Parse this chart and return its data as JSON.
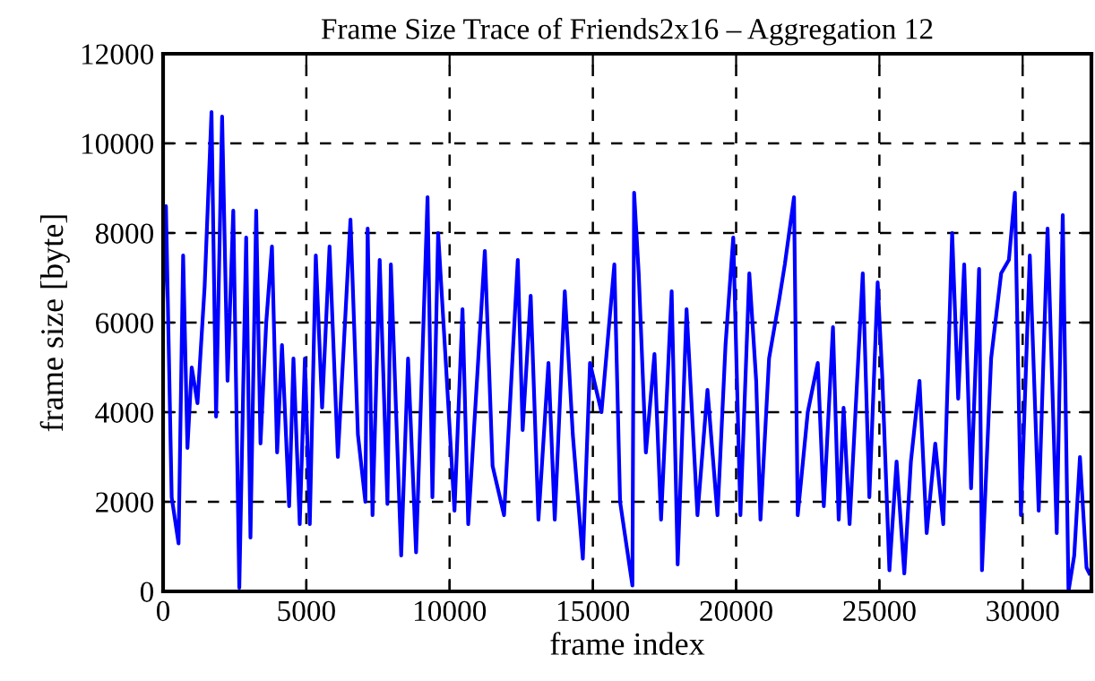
{
  "chart_data": {
    "type": "line",
    "title": "Frame Size Trace of Friends2x16 – Aggregation 12",
    "xlabel": "frame index",
    "ylabel": "frame size [byte]",
    "x": [
      0,
      100,
      300,
      540,
      700,
      850,
      1000,
      1200,
      1450,
      1690,
      1850,
      2060,
      2250,
      2450,
      2660,
      2900,
      3050,
      3250,
      3400,
      3600,
      3800,
      3980,
      4150,
      4400,
      4550,
      4770,
      4950,
      5120,
      5330,
      5550,
      5810,
      6100,
      6540,
      6800,
      7060,
      7140,
      7310,
      7560,
      7830,
      7950,
      8310,
      8550,
      8830,
      9230,
      9400,
      9600,
      9850,
      10170,
      10450,
      10650,
      11230,
      11500,
      11900,
      12380,
      12550,
      12830,
      13100,
      13450,
      13670,
      14020,
      14300,
      14650,
      14900,
      15300,
      15750,
      15950,
      16380,
      16440,
      16600,
      16850,
      17150,
      17380,
      17750,
      17960,
      18270,
      18650,
      19000,
      19350,
      19630,
      19900,
      20150,
      20460,
      20700,
      20850,
      21150,
      21500,
      21700,
      22020,
      22150,
      22500,
      22850,
      23060,
      23380,
      23580,
      23750,
      23960,
      24420,
      24650,
      24940,
      25100,
      25350,
      25600,
      25870,
      26100,
      26400,
      26650,
      26950,
      27230,
      27540,
      27750,
      27960,
      28200,
      28480,
      28580,
      28900,
      29250,
      29520,
      29730,
      29940,
      30250,
      30560,
      30870,
      31190,
      31400,
      31600,
      31800,
      32000,
      32230,
      32330
    ],
    "series": [
      {
        "color": "#0000ff",
        "values": [
          6500,
          8600,
          2100,
          1070,
          7500,
          3200,
          5000,
          4200,
          6800,
          10700,
          3900,
          10600,
          4700,
          8500,
          80,
          7900,
          1200,
          8500,
          3300,
          6000,
          7700,
          3100,
          5500,
          1900,
          5200,
          1500,
          5200,
          1500,
          7500,
          4100,
          7700,
          3000,
          8300,
          3500,
          2000,
          8100,
          1700,
          7400,
          1950,
          7300,
          800,
          5200,
          870,
          8800,
          2100,
          8000,
          5300,
          1800,
          6300,
          1500,
          7600,
          2800,
          1700,
          7400,
          3600,
          6600,
          1600,
          5100,
          1600,
          6700,
          3500,
          730,
          5100,
          4000,
          7300,
          2000,
          130,
          8900,
          7100,
          3100,
          5300,
          1600,
          6700,
          600,
          6300,
          1700,
          4500,
          1700,
          5500,
          7900,
          1700,
          7100,
          4700,
          1600,
          5200,
          6500,
          7300,
          8800,
          1700,
          4000,
          5100,
          1900,
          5900,
          1600,
          4100,
          1500,
          7100,
          2100,
          6900,
          4800,
          470,
          2900,
          400,
          2900,
          4700,
          1300,
          3300,
          1500,
          8000,
          4300,
          7300,
          2300,
          7200,
          470,
          5200,
          7100,
          7400,
          8900,
          1700,
          7500,
          1800,
          8100,
          1300,
          8400,
          0,
          800,
          3000,
          530,
          400
        ]
      }
    ],
    "xlim": [
      0,
      32400
    ],
    "ylim": [
      0,
      12000
    ],
    "xticks": [
      0,
      5000,
      10000,
      15000,
      20000,
      25000,
      30000
    ],
    "yticks": [
      0,
      2000,
      4000,
      6000,
      8000,
      10000,
      12000
    ],
    "grid": true,
    "legend": false,
    "marker": "none",
    "line_style": "solid"
  }
}
